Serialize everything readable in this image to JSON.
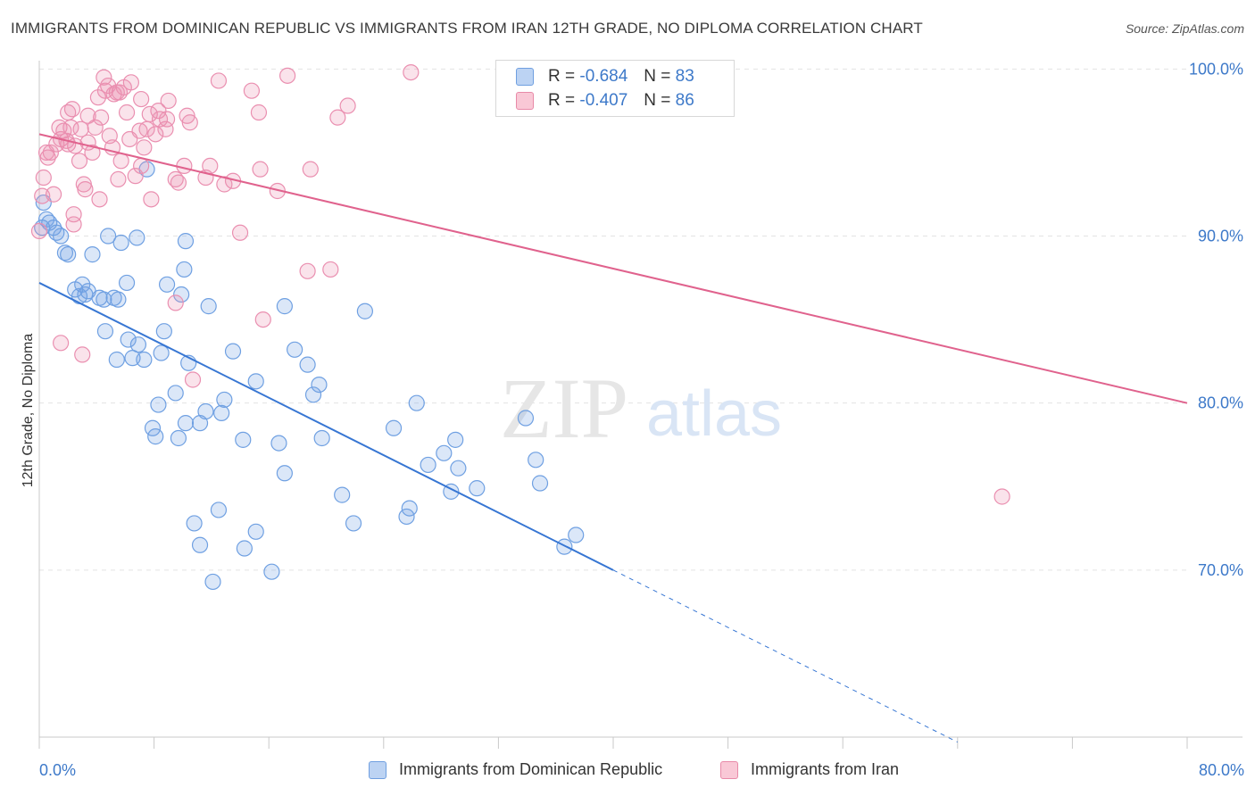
{
  "header": {
    "title": "IMMIGRANTS FROM DOMINICAN REPUBLIC VS IMMIGRANTS FROM IRAN 12TH GRADE, NO DIPLOMA CORRELATION CHART",
    "source": "Source: ZipAtlas.com"
  },
  "watermark": {
    "zip": "ZIP",
    "atlas": "atlas"
  },
  "legend": {
    "r_label": "R =",
    "n_label": "N =",
    "series": [
      {
        "name": "Immigrants from Dominican Republic",
        "r": "-0.684",
        "n": "83",
        "fill": "#bcd3f3",
        "stroke": "#6f9fe0"
      },
      {
        "name": "Immigrants from Iran",
        "r": "-0.407",
        "n": "86",
        "fill": "#f9c8d6",
        "stroke": "#e88aa8"
      }
    ]
  },
  "colors": {
    "blue_point": "#6fa0e2",
    "blue_line": "#3776d3",
    "pink_point": "#ea8fb0",
    "pink_line": "#e0628d",
    "tick_text": "#3d79c9",
    "grid": "#e3e3e3"
  },
  "chart_data": {
    "type": "scatter",
    "title": "IMMIGRANTS FROM DOMINICAN REPUBLIC VS IMMIGRANTS FROM IRAN 12TH GRADE, NO DIPLOMA CORRELATION CHART",
    "xlabel": "",
    "ylabel": "12th Grade, No Diploma",
    "xlim": [
      0,
      80
    ],
    "ylim": [
      60,
      100.5
    ],
    "x_tick_labels": [
      "0.0%",
      "80.0%"
    ],
    "y_ticks": [
      70,
      80,
      90,
      100
    ],
    "y_tick_labels": [
      "70.0%",
      "80.0%",
      "90.0%",
      "100.0%"
    ],
    "grid": true,
    "legend_position": "top-center",
    "series": [
      {
        "name": "Immigrants from Dominican Republic",
        "r": -0.684,
        "n": 83,
        "trend": {
          "x0": 0,
          "y0": 87.2,
          "x1": 40,
          "y1": 70.0,
          "dashed_to_x": 64,
          "dashed_to_y": 59.7
        },
        "points": [
          [
            0.2,
            90.5
          ],
          [
            0.3,
            92.0
          ],
          [
            0.5,
            91.0
          ],
          [
            0.7,
            90.8
          ],
          [
            1.0,
            90.5
          ],
          [
            1.2,
            90.2
          ],
          [
            1.5,
            90.0
          ],
          [
            1.8,
            89.0
          ],
          [
            2.0,
            88.9
          ],
          [
            3.7,
            88.9
          ],
          [
            2.5,
            86.8
          ],
          [
            2.8,
            86.4
          ],
          [
            3.0,
            87.1
          ],
          [
            3.2,
            86.5
          ],
          [
            3.4,
            86.7
          ],
          [
            4.2,
            86.3
          ],
          [
            4.5,
            86.2
          ],
          [
            5.2,
            86.3
          ],
          [
            5.5,
            86.2
          ],
          [
            6.1,
            87.2
          ],
          [
            4.8,
            90.0
          ],
          [
            5.7,
            89.6
          ],
          [
            6.8,
            89.9
          ],
          [
            7.5,
            94.0
          ],
          [
            8.9,
            87.1
          ],
          [
            9.9,
            86.5
          ],
          [
            10.2,
            89.7
          ],
          [
            10.1,
            88.0
          ],
          [
            11.8,
            85.8
          ],
          [
            17.1,
            85.8
          ],
          [
            22.7,
            85.5
          ],
          [
            4.6,
            84.3
          ],
          [
            6.2,
            83.8
          ],
          [
            5.4,
            82.6
          ],
          [
            6.9,
            83.5
          ],
          [
            6.5,
            82.7
          ],
          [
            7.3,
            82.6
          ],
          [
            8.5,
            83.0
          ],
          [
            8.7,
            84.3
          ],
          [
            10.4,
            82.4
          ],
          [
            13.5,
            83.1
          ],
          [
            17.8,
            83.2
          ],
          [
            18.7,
            82.3
          ],
          [
            15.1,
            81.3
          ],
          [
            19.5,
            81.1
          ],
          [
            9.5,
            80.6
          ],
          [
            8.3,
            79.9
          ],
          [
            12.9,
            80.2
          ],
          [
            12.7,
            79.4
          ],
          [
            11.6,
            79.5
          ],
          [
            10.2,
            78.8
          ],
          [
            11.2,
            78.8
          ],
          [
            7.9,
            78.5
          ],
          [
            8.1,
            78.0
          ],
          [
            9.7,
            77.9
          ],
          [
            14.2,
            77.8
          ],
          [
            16.7,
            77.6
          ],
          [
            19.7,
            77.9
          ],
          [
            19.1,
            80.5
          ],
          [
            24.7,
            78.5
          ],
          [
            26.3,
            80.0
          ],
          [
            27.1,
            76.3
          ],
          [
            28.2,
            77.0
          ],
          [
            29.0,
            77.8
          ],
          [
            29.2,
            76.1
          ],
          [
            28.7,
            74.7
          ],
          [
            30.5,
            74.9
          ],
          [
            33.9,
            79.1
          ],
          [
            34.6,
            76.6
          ],
          [
            34.9,
            75.2
          ],
          [
            36.6,
            71.4
          ],
          [
            37.4,
            72.1
          ],
          [
            17.1,
            75.8
          ],
          [
            21.1,
            74.5
          ],
          [
            21.9,
            72.8
          ],
          [
            25.8,
            73.7
          ],
          [
            25.6,
            73.2
          ],
          [
            12.5,
            73.6
          ],
          [
            10.8,
            72.8
          ],
          [
            15.1,
            72.3
          ],
          [
            11.2,
            71.5
          ],
          [
            14.3,
            71.3
          ],
          [
            12.1,
            69.3
          ],
          [
            16.2,
            69.9
          ]
        ]
      },
      {
        "name": "Immigrants from Iran",
        "r": -0.407,
        "n": 86,
        "trend": {
          "x0": 0,
          "y0": 96.1,
          "x1": 80,
          "y1": 80.0
        },
        "points": [
          [
            0.0,
            90.3
          ],
          [
            0.3,
            93.5
          ],
          [
            0.2,
            92.4
          ],
          [
            0.5,
            95.0
          ],
          [
            0.6,
            94.7
          ],
          [
            0.8,
            95.0
          ],
          [
            1.0,
            92.5
          ],
          [
            1.2,
            95.5
          ],
          [
            1.4,
            96.5
          ],
          [
            1.5,
            95.8
          ],
          [
            1.7,
            96.3
          ],
          [
            1.9,
            95.7
          ],
          [
            2.0,
            97.4
          ],
          [
            2.2,
            96.5
          ],
          [
            2.3,
            97.6
          ],
          [
            2.5,
            95.4
          ],
          [
            2.4,
            91.3
          ],
          [
            2.4,
            90.7
          ],
          [
            2.9,
            96.4
          ],
          [
            3.1,
            93.1
          ],
          [
            3.2,
            92.8
          ],
          [
            3.4,
            95.6
          ],
          [
            3.7,
            95.0
          ],
          [
            3.4,
            97.2
          ],
          [
            4.1,
            98.3
          ],
          [
            4.3,
            97.1
          ],
          [
            4.6,
            98.7
          ],
          [
            4.8,
            99.0
          ],
          [
            4.9,
            96.0
          ],
          [
            5.1,
            95.3
          ],
          [
            5.2,
            98.5
          ],
          [
            5.4,
            98.6
          ],
          [
            5.6,
            98.6
          ],
          [
            5.9,
            98.9
          ],
          [
            6.4,
            99.2
          ],
          [
            6.1,
            97.4
          ],
          [
            5.7,
            94.5
          ],
          [
            5.5,
            93.4
          ],
          [
            7.0,
            96.3
          ],
          [
            7.3,
            95.3
          ],
          [
            7.5,
            96.4
          ],
          [
            7.1,
            98.2
          ],
          [
            7.7,
            97.3
          ],
          [
            7.8,
            92.2
          ],
          [
            8.1,
            96.1
          ],
          [
            8.3,
            97.5
          ],
          [
            8.4,
            97.0
          ],
          [
            8.8,
            96.4
          ],
          [
            9.5,
            93.4
          ],
          [
            9.7,
            93.2
          ],
          [
            10.1,
            94.2
          ],
          [
            10.3,
            97.2
          ],
          [
            10.5,
            96.8
          ],
          [
            9.0,
            98.1
          ],
          [
            9.5,
            86.0
          ],
          [
            10.7,
            81.4
          ],
          [
            11.6,
            93.5
          ],
          [
            11.9,
            94.2
          ],
          [
            12.5,
            99.3
          ],
          [
            12.9,
            93.1
          ],
          [
            13.5,
            93.3
          ],
          [
            14.0,
            90.2
          ],
          [
            14.8,
            98.7
          ],
          [
            15.3,
            97.4
          ],
          [
            15.4,
            94.0
          ],
          [
            15.6,
            85.0
          ],
          [
            16.6,
            92.7
          ],
          [
            17.3,
            99.6
          ],
          [
            18.7,
            87.9
          ],
          [
            18.9,
            94.0
          ],
          [
            20.3,
            88.0
          ],
          [
            20.8,
            97.1
          ],
          [
            21.5,
            97.8
          ],
          [
            25.9,
            99.8
          ],
          [
            1.5,
            83.6
          ],
          [
            3.0,
            82.9
          ],
          [
            4.2,
            92.2
          ],
          [
            67.1,
            74.4
          ],
          [
            7.1,
            94.2
          ],
          [
            2.8,
            94.5
          ],
          [
            6.7,
            93.6
          ],
          [
            8.9,
            97.0
          ],
          [
            3.9,
            96.5
          ],
          [
            6.3,
            95.8
          ],
          [
            2.0,
            95.5
          ],
          [
            4.5,
            99.5
          ]
        ]
      }
    ]
  }
}
